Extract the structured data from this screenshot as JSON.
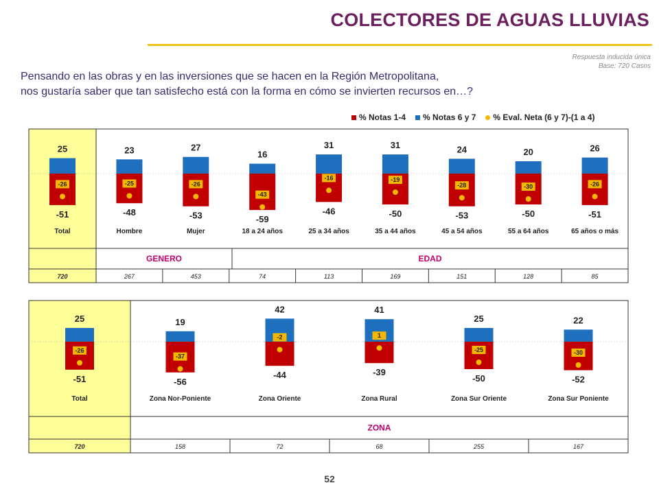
{
  "header": {
    "title": "COLECTORES DE AGUAS LLUVIAS",
    "meta_line1": "Respuesta inducida única",
    "meta_line2": "Base: 720 Casos",
    "question_line1": "Pensando en las obras y en las inversiones que se hacen en la Región Metropolitana,",
    "question_line2": "nos gustaría saber que tan satisfecho está con la forma en cómo se invierten recursos en…?"
  },
  "legend": [
    {
      "label": "% Notas 1-4",
      "color": "#c00000",
      "shape": "square"
    },
    {
      "label": "% Notas 6 y 7",
      "color": "#1f6fbf",
      "shape": "square"
    },
    {
      "label": "% Eval. Neta (6 y 7)-(1 a 4)",
      "color": "#f5b800",
      "shape": "dot"
    }
  ],
  "colors": {
    "neg": "#c00000",
    "pos": "#1f6fbf",
    "net": "#f5b800",
    "highlight": "#ffff99"
  },
  "chart_data": [
    {
      "type": "bar",
      "categories": [
        "Total",
        "Hombre",
        "Mujer",
        "18 a 24 años",
        "25 a 34 años",
        "35 a 44 años",
        "45 a 54 años",
        "55 a 64 años",
        "65 años o más"
      ],
      "series": [
        {
          "name": "% Notas 6 y 7",
          "values": [
            25,
            23,
            27,
            16,
            31,
            31,
            24,
            20,
            26
          ]
        },
        {
          "name": "% Notas 1-4",
          "values": [
            -51,
            -48,
            -53,
            -59,
            -46,
            -50,
            -53,
            -50,
            -51
          ]
        },
        {
          "name": "% Eval. Neta (6 y 7)-(1 a 4)",
          "values": [
            -26,
            -25,
            -26,
            -43,
            -16,
            -19,
            -28,
            -30,
            -26
          ]
        }
      ],
      "groups": [
        {
          "label": "GENERO",
          "categories": [
            "Hombre",
            "Mujer"
          ]
        },
        {
          "label": "EDAD",
          "categories": [
            "18 a 24 años",
            "25 a 34 años",
            "35 a 44 años",
            "45 a 54 años",
            "55 a 64 años",
            "65 años o más"
          ]
        }
      ],
      "bases": [
        "720",
        "267",
        "453",
        "74",
        "113",
        "169",
        "151",
        "128",
        "85"
      ]
    },
    {
      "type": "bar",
      "categories": [
        "Total",
        "Zona Nor-Poniente",
        "Zona Oriente",
        "Zona Rural",
        "Zona Sur Oriente",
        "Zona Sur Poniente"
      ],
      "series": [
        {
          "name": "% Notas 6 y 7",
          "values": [
            25,
            19,
            42,
            41,
            25,
            22
          ]
        },
        {
          "name": "% Notas 1-4",
          "values": [
            -51,
            -56,
            -44,
            -39,
            -50,
            -52
          ]
        },
        {
          "name": "% Eval. Neta (6 y 7)-(1 a 4)",
          "values": [
            -26,
            -37,
            -2,
            1,
            -25,
            -30
          ]
        }
      ],
      "groups": [
        {
          "label": "ZONA",
          "categories": [
            "Zona Nor-Poniente",
            "Zona Oriente",
            "Zona Rural",
            "Zona Sur Oriente",
            "Zona Sur Poniente"
          ]
        }
      ],
      "bases": [
        "720",
        "158",
        "72",
        "68",
        "255",
        "167"
      ]
    }
  ],
  "footer": {
    "page_number": "52"
  }
}
